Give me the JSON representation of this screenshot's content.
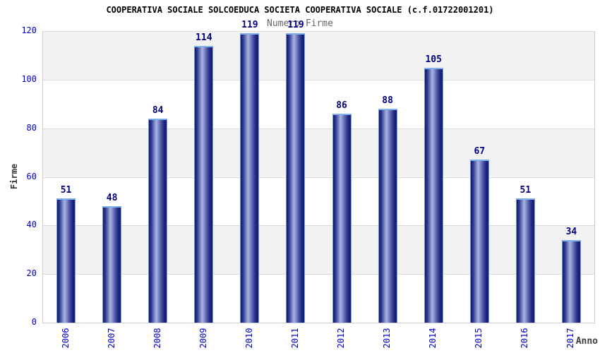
{
  "chart_data": {
    "type": "bar",
    "title": "COOPERATIVA SOCIALE SOLCOEDUCA SOCIETA COOPERATIVA SOCIALE (c.f.01722001201)",
    "subtitle": "Numero Firme",
    "xlabel": "Anno",
    "ylabel": "Firme",
    "categories": [
      "2006",
      "2007",
      "2008",
      "2009",
      "2010",
      "2011",
      "2012",
      "2013",
      "2014",
      "2015",
      "2016",
      "2017"
    ],
    "values": [
      51,
      48,
      84,
      114,
      119,
      119,
      86,
      88,
      105,
      67,
      51,
      34
    ],
    "ylim": [
      0,
      120
    ],
    "ytick_step": 20,
    "yticks": [
      0,
      20,
      40,
      60,
      80,
      100,
      120
    ],
    "grid": true,
    "legend": "none",
    "band_colors": [
      "#f2f2f2",
      "#ffffff"
    ],
    "gridline_color": "#d9d9d9",
    "axis_tick_color": "#0000cc",
    "value_label_color": "#000080",
    "bar_gradient": [
      "#10146e",
      "#353f94",
      "#8c98cf",
      "#a9b3e0",
      "#7c88c8",
      "#4a53a4",
      "#232a7e",
      "#151a6e",
      "#2328a0"
    ],
    "bar_top_edge_color": "#7fb2e8"
  }
}
